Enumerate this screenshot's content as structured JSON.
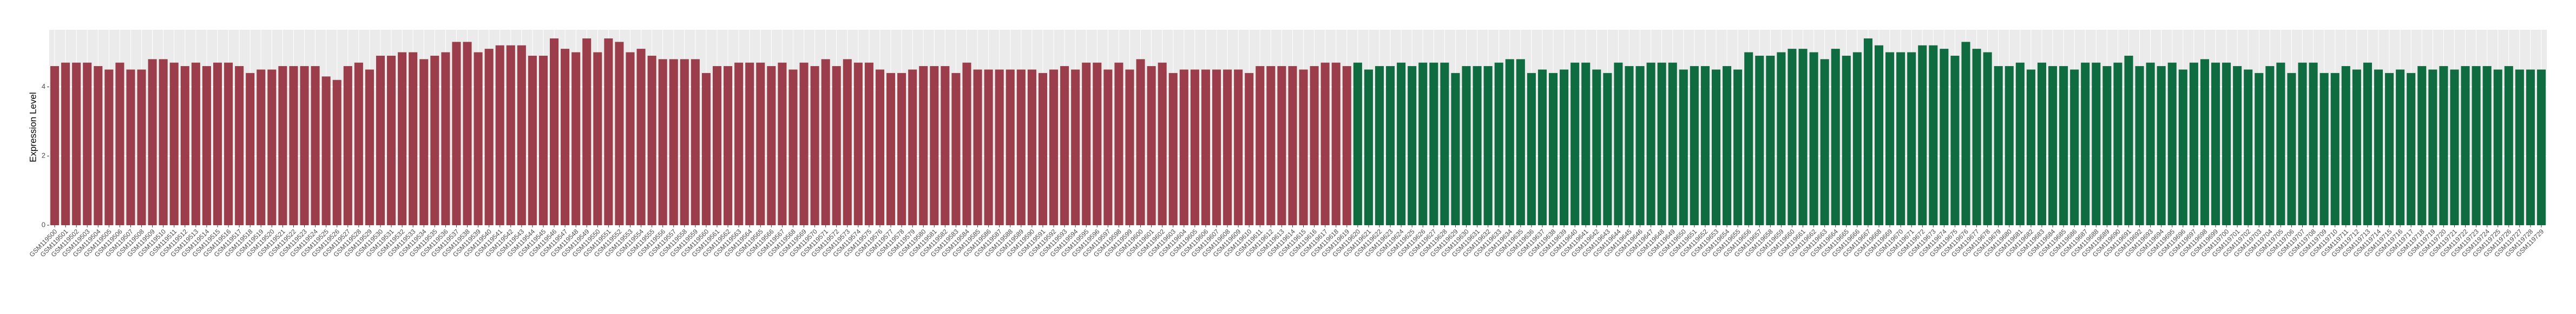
{
  "chart_data": {
    "type": "bar",
    "y_label": "Expression Level",
    "categories": [
      "GSM119500",
      "GSM119501",
      "GSM119502",
      "GSM119503",
      "GSM119504",
      "GSM119505",
      "GSM119506",
      "GSM119507",
      "GSM119508",
      "GSM119509",
      "GSM119510",
      "GSM119511",
      "GSM119512",
      "GSM119513",
      "GSM119514",
      "GSM119515",
      "GSM119516",
      "GSM119517",
      "GSM119518",
      "GSM119519",
      "GSM119520",
      "GSM119521",
      "GSM119522",
      "GSM119523",
      "GSM119524",
      "GSM119525",
      "GSM119526",
      "GSM119527",
      "GSM119528",
      "GSM119529",
      "GSM119530",
      "GSM119531",
      "GSM119532",
      "GSM119533",
      "GSM119534",
      "GSM119535",
      "GSM119536",
      "GSM119537",
      "GSM119538",
      "GSM119539",
      "GSM119540",
      "GSM119541",
      "GSM119542",
      "GSM119543",
      "GSM119544",
      "GSM119545",
      "GSM119546",
      "GSM119547",
      "GSM119548",
      "GSM119549",
      "GSM119550",
      "GSM119551",
      "GSM119552",
      "GSM119553",
      "GSM119554",
      "GSM119555",
      "GSM119556",
      "GSM119557",
      "GSM119558",
      "GSM119559",
      "GSM119560",
      "GSM119561",
      "GSM119562",
      "GSM119563",
      "GSM119564",
      "GSM119565",
      "GSM119566",
      "GSM119567",
      "GSM119568",
      "GSM119569",
      "GSM119570",
      "GSM119571",
      "GSM119572",
      "GSM119573",
      "GSM119574",
      "GSM119575",
      "GSM119576",
      "GSM119577",
      "GSM119578",
      "GSM119579",
      "GSM119580",
      "GSM119581",
      "GSM119582",
      "GSM119583",
      "GSM119584",
      "GSM119585",
      "GSM119586",
      "GSM119587",
      "GSM119588",
      "GSM119589",
      "GSM119590",
      "GSM119591",
      "GSM119592",
      "GSM119593",
      "GSM119594",
      "GSM119595",
      "GSM119596",
      "GSM119597",
      "GSM119598",
      "GSM119599",
      "GSM119600",
      "GSM119601",
      "GSM119602",
      "GSM119603",
      "GSM119604",
      "GSM119605",
      "GSM119606",
      "GSM119607",
      "GSM119608",
      "GSM119609",
      "GSM119610",
      "GSM119611",
      "GSM119612",
      "GSM119613",
      "GSM119614",
      "GSM119615",
      "GSM119616",
      "GSM119617",
      "GSM119618",
      "GSM119619",
      "GSM119620",
      "GSM119621",
      "GSM119622",
      "GSM119623",
      "GSM119624",
      "GSM119625",
      "GSM119626",
      "GSM119627",
      "GSM119628",
      "GSM119629",
      "GSM119630",
      "GSM119631",
      "GSM119632",
      "GSM119633",
      "GSM119634",
      "GSM119635",
      "GSM119636",
      "GSM119637",
      "GSM119638",
      "GSM119639",
      "GSM119640",
      "GSM119641",
      "GSM119642",
      "GSM119643",
      "GSM119644",
      "GSM119645",
      "GSM119646",
      "GSM119647",
      "GSM119648",
      "GSM119649",
      "GSM119650",
      "GSM119651",
      "GSM119652",
      "GSM119653",
      "GSM119654",
      "GSM119655",
      "GSM119656",
      "GSM119657",
      "GSM119658",
      "GSM119659",
      "GSM119660",
      "GSM119661",
      "GSM119662",
      "GSM119663",
      "GSM119664",
      "GSM119665",
      "GSM119666",
      "GSM119667",
      "GSM119668",
      "GSM119669",
      "GSM119670",
      "GSM119671",
      "GSM119672",
      "GSM119673",
      "GSM119674",
      "GSM119675",
      "GSM119676",
      "GSM119677",
      "GSM119678",
      "GSM119679",
      "GSM119680",
      "GSM119681",
      "GSM119682",
      "GSM119683",
      "GSM119684",
      "GSM119685",
      "GSM119686",
      "GSM119687",
      "GSM119688",
      "GSM119689",
      "GSM119690",
      "GSM119691",
      "GSM119692",
      "GSM119693",
      "GSM119694",
      "GSM119695",
      "GSM119696",
      "GSM119697",
      "GSM119698",
      "GSM119699",
      "GSM119700",
      "GSM119701",
      "GSM119702",
      "GSM119703",
      "GSM119704",
      "GSM119705",
      "GSM119706",
      "GSM119707",
      "GSM119708",
      "GSM119709",
      "GSM119710",
      "GSM119711",
      "GSM119712",
      "GSM119713",
      "GSM119714",
      "GSM119715",
      "GSM119716",
      "GSM119717",
      "GSM119718",
      "GSM119719",
      "GSM119720",
      "GSM119721",
      "GSM119722",
      "GSM119723",
      "GSM119724",
      "GSM119725",
      "GSM119726",
      "GSM119727",
      "GSM119728",
      "GSM119729"
    ],
    "values": [
      4.6,
      4.7,
      4.7,
      4.7,
      4.6,
      4.5,
      4.7,
      4.5,
      4.5,
      4.8,
      4.8,
      4.7,
      4.6,
      4.7,
      4.6,
      4.7,
      4.7,
      4.6,
      4.4,
      4.5,
      4.5,
      4.6,
      4.6,
      4.6,
      4.6,
      4.3,
      4.2,
      4.6,
      4.7,
      4.5,
      4.9,
      4.9,
      5.0,
      5.0,
      4.8,
      4.9,
      5.0,
      5.3,
      5.3,
      5.0,
      5.1,
      5.2,
      5.2,
      5.2,
      4.9,
      4.9,
      5.4,
      5.1,
      5.0,
      5.4,
      5.0,
      5.4,
      5.3,
      5.0,
      5.1,
      4.9,
      4.8,
      4.8,
      4.8,
      4.8,
      4.4,
      4.6,
      4.6,
      4.7,
      4.7,
      4.7,
      4.6,
      4.7,
      4.5,
      4.7,
      4.6,
      4.8,
      4.6,
      4.8,
      4.7,
      4.7,
      4.5,
      4.4,
      4.4,
      4.5,
      4.6,
      4.6,
      4.6,
      4.4,
      4.7,
      4.5,
      4.5,
      4.5,
      4.5,
      4.5,
      4.5,
      4.4,
      4.5,
      4.6,
      4.5,
      4.7,
      4.7,
      4.5,
      4.7,
      4.5,
      4.8,
      4.6,
      4.7,
      4.4,
      4.5,
      4.5,
      4.5,
      4.5,
      4.5,
      4.5,
      4.4,
      4.6,
      4.6,
      4.6,
      4.6,
      4.5,
      4.6,
      4.7,
      4.7,
      4.6,
      4.7,
      4.5,
      4.6,
      4.6,
      4.7,
      4.6,
      4.7,
      4.7,
      4.7,
      4.4,
      4.6,
      4.6,
      4.6,
      4.7,
      4.8,
      4.8,
      4.4,
      4.5,
      4.4,
      4.5,
      4.7,
      4.7,
      4.5,
      4.4,
      4.7,
      4.6,
      4.6,
      4.7,
      4.7,
      4.7,
      4.5,
      4.6,
      4.6,
      4.5,
      4.6,
      4.5,
      5.0,
      4.9,
      4.9,
      5.0,
      5.1,
      5.1,
      5.0,
      4.8,
      5.1,
      4.9,
      5.0,
      5.4,
      5.2,
      5.0,
      5.0,
      5.0,
      5.2,
      5.2,
      5.1,
      4.9,
      5.3,
      5.1,
      5.0,
      4.6,
      4.6,
      4.7,
      4.5,
      4.7,
      4.6,
      4.6,
      4.5,
      4.7,
      4.7,
      4.6,
      4.7,
      4.9,
      4.6,
      4.7,
      4.6,
      4.7,
      4.5,
      4.7,
      4.8,
      4.7,
      4.7,
      4.6,
      4.5,
      4.4,
      4.6,
      4.7,
      4.4,
      4.7,
      4.7,
      4.4,
      4.4,
      4.6,
      4.5,
      4.7,
      4.5,
      4.4,
      4.5,
      4.4,
      4.6,
      4.5,
      4.6,
      4.5,
      4.6,
      4.6,
      4.6,
      4.5,
      4.6,
      4.5,
      4.5,
      4.5
    ],
    "colors": [
      "#9b3d4a",
      "#9b3d4a",
      "#9b3d4a",
      "#9b3d4a",
      "#9b3d4a",
      "#9b3d4a",
      "#9b3d4a",
      "#9b3d4a",
      "#9b3d4a",
      "#9b3d4a",
      "#9b3d4a",
      "#9b3d4a",
      "#9b3d4a",
      "#9b3d4a",
      "#9b3d4a",
      "#9b3d4a",
      "#9b3d4a",
      "#9b3d4a",
      "#9b3d4a",
      "#9b3d4a",
      "#9b3d4a",
      "#9b3d4a",
      "#9b3d4a",
      "#9b3d4a",
      "#9b3d4a",
      "#9b3d4a",
      "#9b3d4a",
      "#9b3d4a",
      "#9b3d4a",
      "#9b3d4a",
      "#9b3d4a",
      "#9b3d4a",
      "#9b3d4a",
      "#9b3d4a",
      "#9b3d4a",
      "#9b3d4a",
      "#9b3d4a",
      "#9b3d4a",
      "#9b3d4a",
      "#9b3d4a",
      "#9b3d4a",
      "#9b3d4a",
      "#9b3d4a",
      "#9b3d4a",
      "#9b3d4a",
      "#9b3d4a",
      "#9b3d4a",
      "#9b3d4a",
      "#9b3d4a",
      "#9b3d4a",
      "#9b3d4a",
      "#9b3d4a",
      "#9b3d4a",
      "#9b3d4a",
      "#9b3d4a",
      "#9b3d4a",
      "#9b3d4a",
      "#9b3d4a",
      "#9b3d4a",
      "#9b3d4a",
      "#9b3d4a",
      "#9b3d4a",
      "#9b3d4a",
      "#9b3d4a",
      "#9b3d4a",
      "#9b3d4a",
      "#9b3d4a",
      "#9b3d4a",
      "#9b3d4a",
      "#9b3d4a",
      "#9b3d4a",
      "#9b3d4a",
      "#9b3d4a",
      "#9b3d4a",
      "#9b3d4a",
      "#9b3d4a",
      "#9b3d4a",
      "#9b3d4a",
      "#9b3d4a",
      "#9b3d4a",
      "#9b3d4a",
      "#9b3d4a",
      "#9b3d4a",
      "#9b3d4a",
      "#9b3d4a",
      "#9b3d4a",
      "#9b3d4a",
      "#9b3d4a",
      "#9b3d4a",
      "#9b3d4a",
      "#9b3d4a",
      "#9b3d4a",
      "#9b3d4a",
      "#9b3d4a",
      "#9b3d4a",
      "#9b3d4a",
      "#9b3d4a",
      "#9b3d4a",
      "#9b3d4a",
      "#9b3d4a",
      "#9b3d4a",
      "#9b3d4a",
      "#9b3d4a",
      "#9b3d4a",
      "#9b3d4a",
      "#9b3d4a",
      "#9b3d4a",
      "#9b3d4a",
      "#9b3d4a",
      "#9b3d4a",
      "#9b3d4a",
      "#9b3d4a",
      "#9b3d4a",
      "#9b3d4a",
      "#9b3d4a",
      "#9b3d4a",
      "#9b3d4a",
      "#9b3d4a",
      "#9b3d4a",
      "#9b3d4a",
      "#0f6b40",
      "#0f6b40",
      "#0f6b40",
      "#0f6b40",
      "#0f6b40",
      "#0f6b40",
      "#0f6b40",
      "#0f6b40",
      "#0f6b40",
      "#0f6b40",
      "#0f6b40",
      "#0f6b40",
      "#0f6b40",
      "#0f6b40",
      "#0f6b40",
      "#0f6b40",
      "#0f6b40",
      "#0f6b40",
      "#0f6b40",
      "#0f6b40",
      "#0f6b40",
      "#0f6b40",
      "#0f6b40",
      "#0f6b40",
      "#0f6b40",
      "#0f6b40",
      "#0f6b40",
      "#0f6b40",
      "#0f6b40",
      "#0f6b40",
      "#0f6b40",
      "#0f6b40",
      "#0f6b40",
      "#0f6b40",
      "#0f6b40",
      "#0f6b40",
      "#0f6b40",
      "#0f6b40",
      "#0f6b40",
      "#0f6b40",
      "#0f6b40",
      "#0f6b40",
      "#0f6b40",
      "#0f6b40",
      "#0f6b40",
      "#0f6b40",
      "#0f6b40",
      "#0f6b40",
      "#0f6b40",
      "#0f6b40",
      "#0f6b40",
      "#0f6b40",
      "#0f6b40",
      "#0f6b40",
      "#0f6b40",
      "#0f6b40",
      "#0f6b40",
      "#0f6b40",
      "#0f6b40",
      "#0f6b40",
      "#0f6b40",
      "#0f6b40",
      "#0f6b40",
      "#0f6b40",
      "#0f6b40",
      "#0f6b40",
      "#0f6b40",
      "#0f6b40",
      "#0f6b40",
      "#0f6b40",
      "#0f6b40",
      "#0f6b40",
      "#0f6b40",
      "#0f6b40",
      "#0f6b40",
      "#0f6b40",
      "#0f6b40",
      "#0f6b40",
      "#0f6b40",
      "#0f6b40",
      "#0f6b40",
      "#0f6b40",
      "#0f6b40",
      "#0f6b40",
      "#0f6b40",
      "#0f6b40",
      "#0f6b40",
      "#0f6b40",
      "#0f6b40",
      "#0f6b40",
      "#0f6b40",
      "#0f6b40",
      "#0f6b40",
      "#0f6b40",
      "#0f6b40",
      "#0f6b40",
      "#0f6b40",
      "#0f6b40",
      "#0f6b40",
      "#0f6b40",
      "#0f6b40",
      "#0f6b40",
      "#0f6b40",
      "#0f6b40",
      "#0f6b40",
      "#0f6b40",
      "#0f6b40",
      "#0f6b40",
      "#0f6b40",
      "#0f6b40"
    ],
    "ylim": [
      0,
      5.65
    ],
    "yticks": [
      0,
      2,
      4
    ],
    "grid": true
  }
}
